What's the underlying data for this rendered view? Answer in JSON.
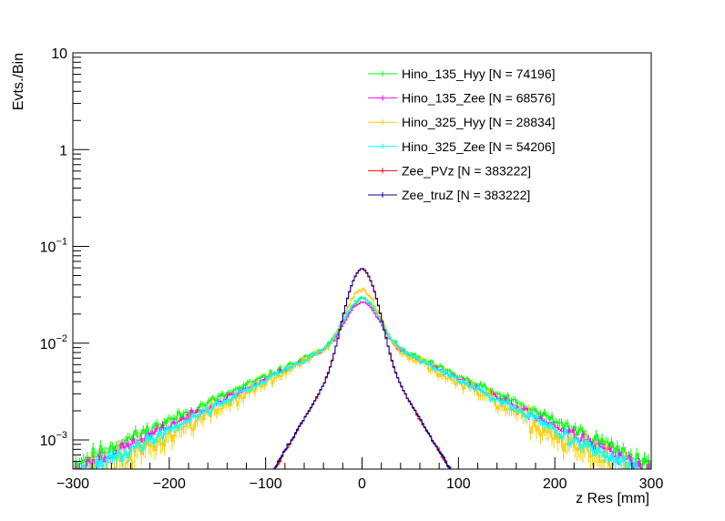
{
  "chart_data": {
    "type": "histogram",
    "ylabel": "Evts./Bin",
    "xlabel": "z Res [mm]",
    "xlim": [
      -300,
      300
    ],
    "ylim": [
      0.0005,
      10
    ],
    "yscale": "log",
    "x_ticks": [
      {
        "value": -300,
        "label": "−300"
      },
      {
        "value": -200,
        "label": "−200"
      },
      {
        "value": -100,
        "label": "−100"
      },
      {
        "value": 0,
        "label": "0"
      },
      {
        "value": 100,
        "label": "100"
      },
      {
        "value": 200,
        "label": "200"
      },
      {
        "value": 300,
        "label": "300"
      }
    ],
    "y_ticks": [
      {
        "value": 10,
        "base": "10",
        "exp": ""
      },
      {
        "value": 1,
        "base": "1",
        "exp": ""
      },
      {
        "value": 0.1,
        "base": "10",
        "exp": "−1"
      },
      {
        "value": 0.01,
        "base": "10",
        "exp": "−2"
      },
      {
        "value": 0.001,
        "base": "10",
        "exp": "−3"
      }
    ],
    "bin_width": 2,
    "series": [
      {
        "name": "Hino_135_Hyy [N = 74196]",
        "color": "#00ff00",
        "peak": 0.029,
        "core_sigma": 14,
        "tail_tau": 95,
        "tail_frac": 0.45,
        "noise": 0.13,
        "seed": 11
      },
      {
        "name": "Hino_135_Zee [N = 68576]",
        "color": "#ff00ff",
        "peak": 0.027,
        "core_sigma": 14,
        "tail_tau": 90,
        "tail_frac": 0.48,
        "noise": 0.1,
        "seed": 23
      },
      {
        "name": "Hino_325_Hyy [N = 28834]",
        "color": "#ffcc00",
        "peak": 0.036,
        "core_sigma": 13,
        "tail_tau": 80,
        "tail_frac": 0.38,
        "noise": 0.22,
        "seed": 37
      },
      {
        "name": "Hino_325_Zee [N = 54206]",
        "color": "#00ffff",
        "peak": 0.03,
        "core_sigma": 14,
        "tail_tau": 85,
        "tail_frac": 0.45,
        "noise": 0.12,
        "seed": 41
      },
      {
        "name": "Zee_PVz [N = 383222]",
        "color": "#ff0000",
        "peak": 0.059,
        "core_sigma": 12,
        "tail_tau": 26,
        "tail_frac": 0.28,
        "noise": 0.03,
        "seed": 53
      },
      {
        "name": "Zee_truZ [N = 383222]",
        "color": "#000099",
        "peak": 0.06,
        "core_sigma": 12,
        "tail_tau": 26,
        "tail_frac": 0.28,
        "noise": 0.03,
        "seed": 59
      }
    ]
  }
}
